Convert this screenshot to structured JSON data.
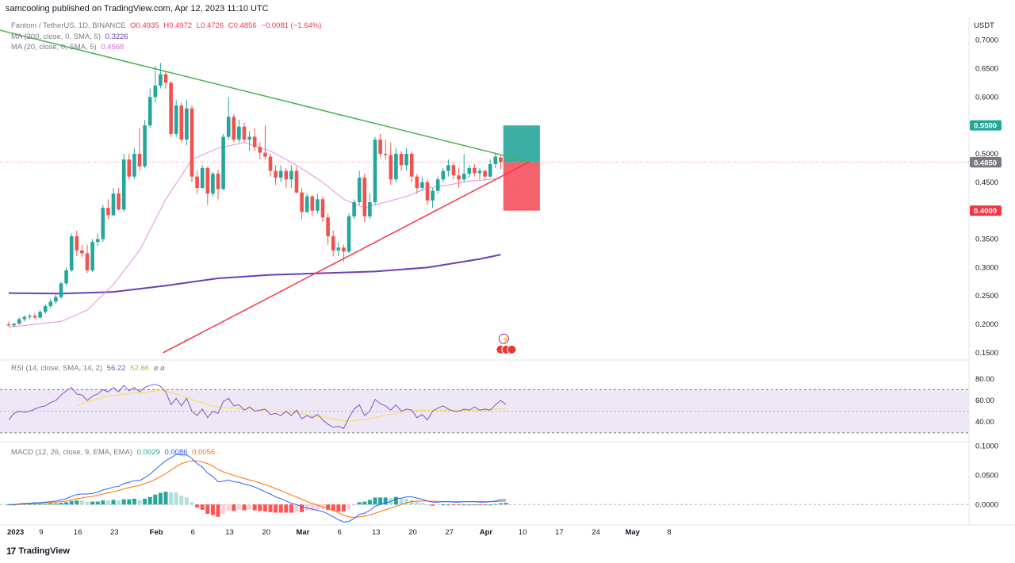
{
  "header": {
    "publisher": "samcooling published on TradingView.com, Apr 12, 2023 11:10 UTC"
  },
  "legend": {
    "symbol": "Fantom / TetherUS, 1D, BINANCE",
    "o": "O0.4935",
    "h": "H0.4972",
    "l": "L0.4726",
    "c": "C0.4856",
    "change": "−0.0081 (−1.64%)",
    "ma200": "MA (200, close, 0, SMA, 5)",
    "ma200_val": "0.3226",
    "ma20": "MA (20, close, 0, SMA, 5)",
    "ma20_val": "0.4568",
    "rsi": "RSI (14, close, SMA, 14, 2)",
    "rsi_val1": "56.22",
    "rsi_val2": "52.66",
    "rsi_na": "ø  ø",
    "macd": "MACD (12, 26, close, 9, EMA, EMA)",
    "macd_val1": "0.0029",
    "macd_val2": "0.0086",
    "macd_val3": "0.0056"
  },
  "footer": {
    "brand": "TradingView",
    "logo": "17"
  },
  "colors": {
    "up": "#26a69a",
    "down": "#ef5350",
    "ma20": "#e58ee5",
    "ma200": "#6a3fb5",
    "trend_upper": "#4caf50",
    "trend_lower": "#f23645",
    "target_zone": "#26a69a",
    "stop_zone": "#f23645",
    "rsi_line": "#7e57c2",
    "rsi_ma": "#f5e14a",
    "rsi_band": "#ede7f6",
    "macd_line": "#2962ff",
    "signal_line": "#ff6d00"
  },
  "chart_data": [
    {
      "type": "candlestick",
      "title": "Fantom / TetherUS, 1D, BINANCE",
      "ylabel": "USDT",
      "y_ticks": [
        "0.7000",
        "0.6500",
        "0.6000",
        "0.5500",
        "0.5000",
        "0.4500",
        "0.4000",
        "0.3500",
        "0.3000",
        "0.2500",
        "0.2000",
        "0.1500"
      ],
      "ylim": [
        0.14,
        0.74
      ],
      "x_ticks": [
        "2023",
        "9",
        "16",
        "23",
        "Feb",
        "6",
        "13",
        "20",
        "Mar",
        "6",
        "13",
        "20",
        "27",
        "Apr",
        "10",
        "17",
        "24",
        "May",
        "8"
      ],
      "price_tags": [
        {
          "label": "0.5500",
          "color": "#26a69a"
        },
        {
          "label": "0.4856",
          "color": "#f23645"
        },
        {
          "label": "0.4850",
          "color": "#787b86"
        },
        {
          "label": "0.4000",
          "color": "#f23645"
        }
      ],
      "candles": [
        [
          0.2,
          0.205,
          0.196,
          0.198
        ],
        [
          0.198,
          0.203,
          0.195,
          0.201
        ],
        [
          0.201,
          0.212,
          0.199,
          0.209
        ],
        [
          0.209,
          0.216,
          0.205,
          0.213
        ],
        [
          0.213,
          0.218,
          0.209,
          0.215
        ],
        [
          0.215,
          0.22,
          0.21,
          0.212
        ],
        [
          0.212,
          0.225,
          0.21,
          0.222
        ],
        [
          0.222,
          0.235,
          0.218,
          0.232
        ],
        [
          0.232,
          0.245,
          0.228,
          0.24
        ],
        [
          0.24,
          0.252,
          0.236,
          0.248
        ],
        [
          0.248,
          0.275,
          0.245,
          0.272
        ],
        [
          0.272,
          0.3,
          0.268,
          0.295
        ],
        [
          0.295,
          0.36,
          0.292,
          0.355
        ],
        [
          0.355,
          0.365,
          0.32,
          0.33
        ],
        [
          0.33,
          0.34,
          0.318,
          0.325
        ],
        [
          0.325,
          0.34,
          0.29,
          0.295
        ],
        [
          0.295,
          0.35,
          0.292,
          0.345
        ],
        [
          0.345,
          0.36,
          0.338,
          0.35
        ],
        [
          0.35,
          0.41,
          0.345,
          0.405
        ],
        [
          0.405,
          0.42,
          0.385,
          0.392
        ],
        [
          0.392,
          0.44,
          0.39,
          0.43
        ],
        [
          0.43,
          0.44,
          0.4,
          0.402
        ],
        [
          0.402,
          0.5,
          0.398,
          0.49
        ],
        [
          0.49,
          0.5,
          0.455,
          0.46
        ],
        [
          0.46,
          0.51,
          0.455,
          0.5
        ],
        [
          0.5,
          0.545,
          0.47,
          0.478
        ],
        [
          0.478,
          0.56,
          0.475,
          0.55
        ],
        [
          0.55,
          0.615,
          0.545,
          0.6
        ],
        [
          0.6,
          0.655,
          0.59,
          0.62
        ],
        [
          0.62,
          0.66,
          0.615,
          0.64
        ],
        [
          0.64,
          0.645,
          0.615,
          0.625
        ],
        [
          0.625,
          0.628,
          0.53,
          0.535
        ],
        [
          0.535,
          0.595,
          0.53,
          0.585
        ],
        [
          0.585,
          0.59,
          0.52,
          0.525
        ],
        [
          0.525,
          0.595,
          0.515,
          0.58
        ],
        [
          0.58,
          0.585,
          0.45,
          0.46
        ],
        [
          0.46,
          0.47,
          0.43,
          0.44
        ],
        [
          0.44,
          0.48,
          0.438,
          0.475
        ],
        [
          0.475,
          0.478,
          0.41,
          0.43
        ],
        [
          0.43,
          0.468,
          0.425,
          0.465
        ],
        [
          0.465,
          0.472,
          0.42,
          0.438
        ],
        [
          0.438,
          0.535,
          0.436,
          0.53
        ],
        [
          0.53,
          0.6,
          0.525,
          0.565
        ],
        [
          0.565,
          0.57,
          0.52,
          0.525
        ],
        [
          0.525,
          0.56,
          0.52,
          0.548
        ],
        [
          0.548,
          0.555,
          0.52,
          0.525
        ],
        [
          0.525,
          0.54,
          0.505,
          0.53
        ],
        [
          0.53,
          0.545,
          0.505,
          0.512
        ],
        [
          0.512,
          0.52,
          0.49,
          0.502
        ],
        [
          0.502,
          0.55,
          0.49,
          0.495
        ],
        [
          0.495,
          0.5,
          0.46,
          0.47
        ],
        [
          0.47,
          0.48,
          0.445,
          0.458
        ],
        [
          0.458,
          0.48,
          0.45,
          0.47
        ],
        [
          0.47,
          0.475,
          0.44,
          0.455
        ],
        [
          0.455,
          0.48,
          0.44,
          0.47
        ],
        [
          0.47,
          0.478,
          0.43,
          0.432
        ],
        [
          0.432,
          0.44,
          0.385,
          0.398
        ],
        [
          0.398,
          0.43,
          0.395,
          0.425
        ],
        [
          0.425,
          0.428,
          0.39,
          0.4
        ],
        [
          0.4,
          0.43,
          0.395,
          0.42
        ],
        [
          0.42,
          0.425,
          0.38,
          0.388
        ],
        [
          0.388,
          0.395,
          0.34,
          0.355
        ],
        [
          0.355,
          0.365,
          0.32,
          0.33
        ],
        [
          0.33,
          0.345,
          0.32,
          0.335
        ],
        [
          0.335,
          0.34,
          0.31,
          0.328
        ],
        [
          0.328,
          0.395,
          0.325,
          0.39
        ],
        [
          0.39,
          0.42,
          0.385,
          0.415
        ],
        [
          0.415,
          0.47,
          0.41,
          0.458
        ],
        [
          0.458,
          0.465,
          0.38,
          0.39
        ],
        [
          0.39,
          0.43,
          0.385,
          0.415
        ],
        [
          0.415,
          0.53,
          0.41,
          0.525
        ],
        [
          0.525,
          0.535,
          0.495,
          0.5
        ],
        [
          0.5,
          0.525,
          0.49,
          0.498
        ],
        [
          0.498,
          0.52,
          0.445,
          0.455
        ],
        [
          0.455,
          0.51,
          0.45,
          0.5
        ],
        [
          0.5,
          0.505,
          0.47,
          0.48
        ],
        [
          0.48,
          0.51,
          0.47,
          0.5
        ],
        [
          0.5,
          0.505,
          0.45,
          0.46
        ],
        [
          0.46,
          0.465,
          0.43,
          0.44
        ],
        [
          0.44,
          0.46,
          0.435,
          0.45
        ],
        [
          0.45,
          0.455,
          0.41,
          0.418
        ],
        [
          0.418,
          0.44,
          0.405,
          0.435
        ],
        [
          0.435,
          0.46,
          0.43,
          0.455
        ],
        [
          0.455,
          0.475,
          0.45,
          0.47
        ],
        [
          0.47,
          0.49,
          0.46,
          0.48
        ],
        [
          0.48,
          0.485,
          0.455,
          0.462
        ],
        [
          0.462,
          0.475,
          0.44,
          0.455
        ],
        [
          0.455,
          0.5,
          0.45,
          0.465
        ],
        [
          0.465,
          0.48,
          0.458,
          0.475
        ],
        [
          0.475,
          0.482,
          0.46,
          0.466
        ],
        [
          0.466,
          0.475,
          0.455,
          0.47
        ],
        [
          0.47,
          0.472,
          0.455,
          0.46
        ],
        [
          0.46,
          0.49,
          0.458,
          0.482
        ],
        [
          0.482,
          0.5,
          0.475,
          0.495
        ],
        [
          0.4935,
          0.4972,
          0.4726,
          0.4856
        ]
      ],
      "ma20": [
        [
          0,
          0.195
        ],
        [
          10,
          0.205
        ],
        [
          15,
          0.225
        ],
        [
          20,
          0.27
        ],
        [
          25,
          0.33
        ],
        [
          30,
          0.42
        ],
        [
          35,
          0.49
        ],
        [
          40,
          0.51
        ],
        [
          45,
          0.52
        ],
        [
          50,
          0.505
        ],
        [
          55,
          0.48
        ],
        [
          60,
          0.45
        ],
        [
          64,
          0.42
        ],
        [
          68,
          0.405
        ],
        [
          72,
          0.415
        ],
        [
          76,
          0.425
        ],
        [
          80,
          0.44
        ],
        [
          84,
          0.445
        ],
        [
          88,
          0.452
        ],
        [
          92,
          0.455
        ],
        [
          94,
          0.4568
        ]
      ],
      "ma200": [
        [
          0,
          0.255
        ],
        [
          10,
          0.254
        ],
        [
          20,
          0.257
        ],
        [
          30,
          0.268
        ],
        [
          40,
          0.281
        ],
        [
          50,
          0.287
        ],
        [
          60,
          0.29
        ],
        [
          70,
          0.293
        ],
        [
          80,
          0.3
        ],
        [
          90,
          0.315
        ],
        [
          94,
          0.3226
        ]
      ],
      "trend_lines": [
        {
          "name": "upper",
          "points": [
            [
              -8,
              0.732
            ],
            [
              99.5,
              0.486
            ]
          ]
        },
        {
          "name": "lower",
          "points": [
            [
              29.5,
              0.15
            ],
            [
              99.5,
              0.486
            ]
          ]
        }
      ],
      "position": {
        "entry": 0.485,
        "target": 0.55,
        "stop": 0.4,
        "x_start": 94.5,
        "x_end": 101.5
      }
    },
    {
      "type": "line",
      "title": "RSI (14, close, SMA, 14, 2)",
      "y_ticks": [
        "80.00",
        "60.00",
        "40.00"
      ],
      "ylim": [
        24,
        96
      ],
      "band": [
        30,
        70
      ],
      "rsi": [
        42,
        48,
        50,
        49,
        50,
        52,
        54,
        55,
        58,
        60,
        65,
        69,
        72,
        66,
        65,
        60,
        64,
        66,
        70,
        68,
        72,
        68,
        74,
        69,
        72,
        68,
        72,
        74,
        75,
        73,
        68,
        56,
        62,
        55,
        62,
        50,
        46,
        52,
        44,
        50,
        48,
        59,
        62,
        55,
        56,
        51,
        54,
        50,
        51,
        52,
        47,
        48,
        46,
        50,
        46,
        51,
        43,
        46,
        44,
        47,
        42,
        38,
        35,
        36,
        34,
        44,
        52,
        56,
        46,
        50,
        61,
        57,
        55,
        51,
        56,
        50,
        52,
        51,
        44,
        47,
        42,
        50,
        53,
        55,
        52,
        50,
        50,
        52,
        51,
        54,
        51,
        52,
        51,
        56,
        60,
        56.22
      ],
      "rsi_ma": [
        null,
        null,
        null,
        null,
        null,
        null,
        null,
        null,
        null,
        null,
        null,
        null,
        null,
        55,
        57,
        59,
        60,
        61,
        63,
        64,
        65,
        65,
        66,
        66,
        67,
        67,
        67,
        68,
        69,
        69,
        69,
        67,
        66,
        64,
        63,
        61,
        59,
        58,
        56,
        55,
        54,
        53,
        53,
        53,
        52,
        52,
        52,
        52,
        51,
        51,
        50,
        50,
        50,
        49,
        49,
        49,
        48,
        47,
        46,
        45,
        45,
        44,
        43,
        42,
        41,
        41,
        41,
        42,
        42,
        43,
        44,
        45,
        46,
        47,
        48,
        49,
        50,
        50,
        51,
        51,
        51,
        51,
        51,
        51,
        51,
        51,
        51,
        51,
        51,
        51,
        51,
        51,
        52,
        52,
        52,
        52.66
      ]
    },
    {
      "type": "bar",
      "title": "MACD (12, 26, close, 9, EMA, EMA)",
      "y_ticks": [
        "0.1000",
        "0.0500",
        "0.0000"
      ],
      "ylim": [
        -0.035,
        0.105
      ],
      "macd": [
        0,
        0,
        0.001,
        0.002,
        0.002,
        0.003,
        0.003,
        0.004,
        0.005,
        0.006,
        0.008,
        0.01,
        0.014,
        0.017,
        0.018,
        0.018,
        0.019,
        0.021,
        0.025,
        0.027,
        0.03,
        0.031,
        0.036,
        0.038,
        0.041,
        0.041,
        0.046,
        0.052,
        0.06,
        0.068,
        0.075,
        0.08,
        0.086,
        0.085,
        0.085,
        0.079,
        0.07,
        0.064,
        0.054,
        0.048,
        0.039,
        0.04,
        0.042,
        0.039,
        0.038,
        0.035,
        0.033,
        0.03,
        0.026,
        0.022,
        0.018,
        0.013,
        0.01,
        0.006,
        0.002,
        0.0,
        -0.004,
        -0.006,
        -0.008,
        -0.01,
        -0.012,
        -0.016,
        -0.021,
        -0.026,
        -0.03,
        -0.029,
        -0.024,
        -0.017,
        -0.015,
        -0.01,
        -0.003,
        0.0,
        0.003,
        0.005,
        0.01,
        0.011,
        0.013,
        0.013,
        0.011,
        0.009,
        0.006,
        0.004,
        0.004,
        0.005,
        0.005,
        0.004,
        0.004,
        0.005,
        0.005,
        0.005,
        0.004,
        0.004,
        0.005,
        0.006,
        0.008,
        0.0086
      ],
      "signal": [
        0,
        0,
        0,
        0.001,
        0.001,
        0.002,
        0.002,
        0.003,
        0.003,
        0.004,
        0.005,
        0.006,
        0.008,
        0.01,
        0.011,
        0.013,
        0.014,
        0.016,
        0.018,
        0.02,
        0.022,
        0.024,
        0.027,
        0.029,
        0.031,
        0.033,
        0.036,
        0.039,
        0.043,
        0.048,
        0.053,
        0.059,
        0.065,
        0.07,
        0.073,
        0.075,
        0.075,
        0.073,
        0.07,
        0.066,
        0.06,
        0.056,
        0.053,
        0.05,
        0.047,
        0.045,
        0.042,
        0.04,
        0.037,
        0.034,
        0.031,
        0.027,
        0.024,
        0.02,
        0.016,
        0.013,
        0.009,
        0.005,
        0.002,
        -0.001,
        -0.004,
        -0.007,
        -0.01,
        -0.014,
        -0.018,
        -0.021,
        -0.022,
        -0.021,
        -0.02,
        -0.018,
        -0.015,
        -0.012,
        -0.009,
        -0.006,
        -0.003,
        0.0,
        0.003,
        0.005,
        0.006,
        0.006,
        0.006,
        0.006,
        0.005,
        0.005,
        0.005,
        0.005,
        0.005,
        0.005,
        0.005,
        0.005,
        0.005,
        0.005,
        0.005,
        0.005,
        0.0058,
        0.0056
      ]
    }
  ]
}
